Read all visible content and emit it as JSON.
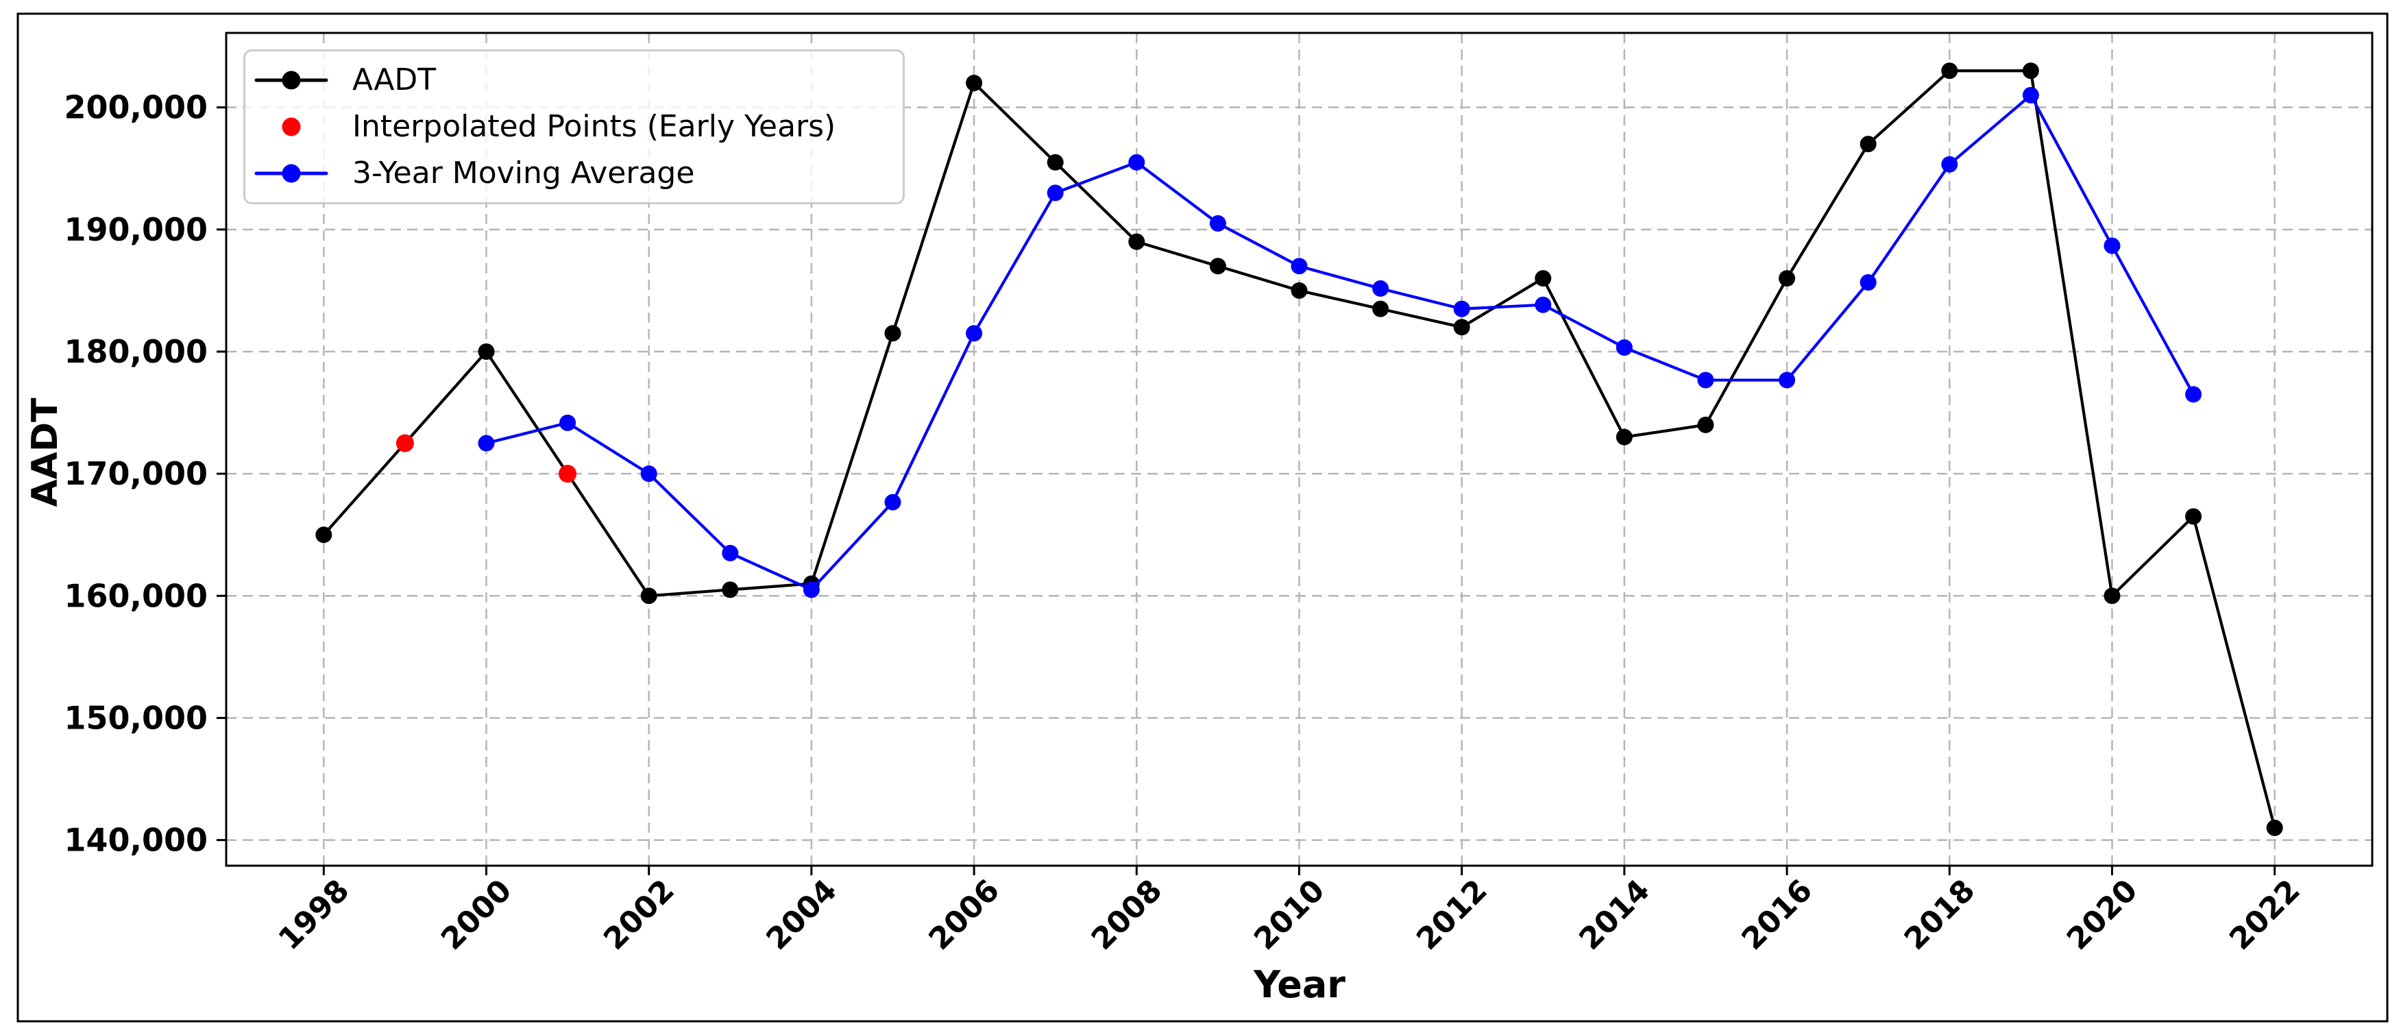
{
  "figure": {
    "background": "#ffffff",
    "border_color": "#000000"
  },
  "chart_data": {
    "type": "line",
    "title": "",
    "xlabel": "Year",
    "ylabel": "AADT",
    "grid": true,
    "grid_color": "#b5b5b5",
    "legend_position": "upper-left",
    "xlim": [
      1996.8,
      2023.2
    ],
    "ylim": [
      137900,
      206100
    ],
    "x_ticks": [
      1998,
      2000,
      2002,
      2004,
      2006,
      2008,
      2010,
      2012,
      2014,
      2016,
      2018,
      2020,
      2022
    ],
    "y_ticks": [
      140000,
      150000,
      160000,
      170000,
      180000,
      190000,
      200000
    ],
    "y_tick_labels": [
      "140,000",
      "150,000",
      "160,000",
      "170,000",
      "180,000",
      "190,000",
      "200,000"
    ],
    "series": [
      {
        "name": "AADT",
        "color": "#000000",
        "style": "line-marker",
        "x": [
          1998,
          1999,
          2000,
          2001,
          2002,
          2003,
          2004,
          2005,
          2006,
          2007,
          2008,
          2009,
          2010,
          2011,
          2012,
          2013,
          2014,
          2015,
          2016,
          2017,
          2018,
          2019,
          2020,
          2021,
          2022
        ],
        "y": [
          165000,
          172500,
          180000,
          170000,
          160000,
          160500,
          161000,
          181500,
          202000,
          195500,
          189000,
          187000,
          185000,
          183500,
          182000,
          186000,
          173000,
          174000,
          186000,
          197000,
          203000,
          203000,
          160000,
          166500,
          141000
        ]
      },
      {
        "name": "Interpolated Points (Early Years)",
        "color": "#ff0000",
        "style": "marker",
        "x": [
          1999,
          2001
        ],
        "y": [
          172500,
          170000
        ]
      },
      {
        "name": "3-Year Moving Average",
        "color": "#0000ff",
        "style": "line-marker",
        "x": [
          2000,
          2001,
          2002,
          2003,
          2004,
          2005,
          2006,
          2007,
          2008,
          2009,
          2010,
          2011,
          2012,
          2013,
          2014,
          2015,
          2016,
          2017,
          2018,
          2019,
          2020,
          2021
        ],
        "y": [
          172500,
          174167,
          170000,
          163500,
          160500,
          167667,
          181500,
          193000,
          195500,
          190500,
          187000,
          185167,
          183500,
          183833,
          180333,
          177667,
          177667,
          185667,
          195333,
          201000,
          188667,
          176500
        ]
      }
    ]
  }
}
